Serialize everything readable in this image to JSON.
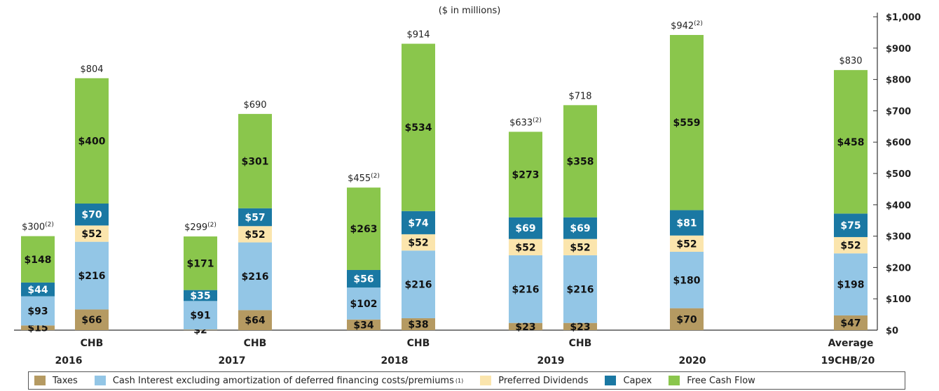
{
  "chart_data": {
    "type": "bar",
    "subtitle": "($ in millions)",
    "y_axis": {
      "min": 0,
      "max": 1000,
      "ticks": [
        "$0",
        "$100",
        "$200",
        "$300",
        "$400",
        "$500",
        "$600",
        "$700",
        "$800",
        "$900",
        "$1,000"
      ],
      "position": "right"
    },
    "series": [
      {
        "name": "Taxes",
        "color": "#b59a62"
      },
      {
        "name": "Cash Interest excluding amortization of deferred financing costs/premiums",
        "note": "(1)",
        "color": "#93c6e6"
      },
      {
        "name": "Preferred Dividends",
        "color": "#fbe5ad"
      },
      {
        "name": "Capex",
        "color": "#1a78a3"
      },
      {
        "name": "Free Cash Flow",
        "color": "#8ac64c"
      }
    ],
    "bars": [
      {
        "group": "2016",
        "label": "",
        "values": [
          15,
          93,
          0,
          44,
          148
        ],
        "total": "$300",
        "note": "(2)"
      },
      {
        "group": "2016",
        "label": "CHB",
        "values": [
          66,
          216,
          52,
          70,
          400
        ],
        "total": "$804",
        "note": ""
      },
      {
        "group": "2017",
        "label": "",
        "values": [
          2,
          91,
          0,
          35,
          171
        ],
        "total": "$299",
        "note": "(2)"
      },
      {
        "group": "2017",
        "label": "CHB",
        "values": [
          64,
          216,
          52,
          57,
          301
        ],
        "total": "$690",
        "note": ""
      },
      {
        "group": "2018",
        "label": "",
        "values": [
          34,
          102,
          0,
          56,
          263
        ],
        "total": "$455",
        "note": "(2)"
      },
      {
        "group": "2018",
        "label": "CHB",
        "values": [
          38,
          216,
          52,
          74,
          534
        ],
        "total": "$914",
        "note": ""
      },
      {
        "group": "2019",
        "label": "",
        "values": [
          23,
          216,
          52,
          69,
          273
        ],
        "total": "$633",
        "note": "(2)"
      },
      {
        "group": "2019",
        "label": "CHB",
        "values": [
          23,
          216,
          52,
          69,
          358
        ],
        "total": "$718",
        "note": ""
      },
      {
        "group": "2020",
        "label": "",
        "values": [
          70,
          180,
          52,
          81,
          559
        ],
        "total": "$942",
        "note": "(2)"
      },
      {
        "group": "19CHB/20",
        "label": "Average",
        "values": [
          47,
          198,
          52,
          75,
          458
        ],
        "total": "$830",
        "note": ""
      }
    ],
    "groups": [
      "2016",
      "2017",
      "2018",
      "2019",
      "2020",
      "19CHB/20"
    ],
    "legend_position": "bottom"
  }
}
